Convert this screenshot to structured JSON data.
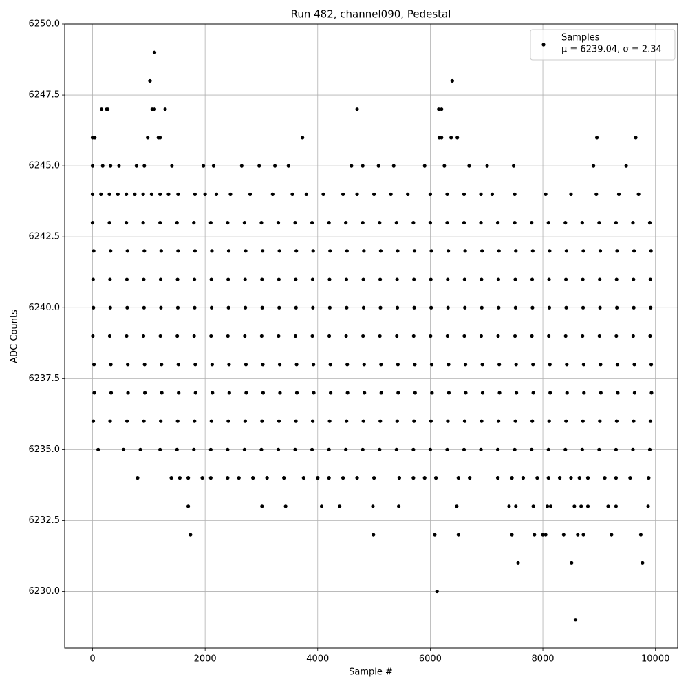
{
  "chart_data": {
    "type": "scatter",
    "title": "Run 482, channel090, Pedestal",
    "x_label": "Sample #",
    "y_label": "ADC Counts",
    "xlim": [
      -495,
      10395
    ],
    "xticks": [
      0,
      2000,
      4000,
      6000,
      8000,
      10000
    ],
    "ylim": [
      6228,
      6250
    ],
    "yticks": [
      {
        "value": 6230,
        "label": "6230.0"
      },
      {
        "value": 6232.5,
        "label": "6232.5"
      },
      {
        "value": 6235,
        "label": "6235.0"
      },
      {
        "value": 6237.5,
        "label": "6237.5"
      },
      {
        "value": 6240,
        "label": "6240.0"
      },
      {
        "value": 6242.5,
        "label": "6242.5"
      },
      {
        "value": 6245,
        "label": "6245.0"
      },
      {
        "value": 6247.5,
        "label": "6247.5"
      },
      {
        "value": 6250,
        "label": "6250.0"
      }
    ],
    "grid": true,
    "legend": "upper right",
    "legend_note": "μ = 6239.04, σ = 2.34",
    "series": [
      {
        "name": "Samples",
        "color": "#000000",
        "x": [
          1100,
          1020,
          6390,
          160,
          250,
          270,
          1060,
          1100,
          1290,
          4700,
          6150,
          6200,
          0,
          40,
          980,
          1170,
          1200,
          3730,
          6160,
          6200,
          6370,
          6480,
          8960,
          9650,
          8580,
          6120,
          7560,
          8510,
          9770,
          1740,
          4990,
          6080,
          6500,
          7450,
          7850,
          8000,
          8050,
          8370,
          8620,
          8720,
          9220,
          9740,
          1700,
          3010,
          3430,
          4070,
          4390,
          4980,
          5440,
          6470,
          7400,
          7520,
          7830,
          8080,
          8140,
          8560,
          8680,
          8800,
          9160,
          9300,
          9870,
          0,
          180,
          320,
          470,
          780,
          920,
          1410,
          1970,
          2150,
          2650,
          2960,
          3240,
          3480,
          4600,
          4800,
          5080,
          5350,
          5900,
          6250,
          6690,
          7010,
          7480,
          8900,
          9480,
          0,
          150,
          300,
          450,
          600,
          750,
          900,
          1050,
          1200,
          1350,
          1520,
          1820,
          2000,
          2200,
          2450,
          2800,
          3200,
          3550,
          3800,
          4100,
          4450,
          4700,
          5000,
          5300,
          5600,
          6000,
          6300,
          6600,
          6900,
          7100,
          7500,
          8050,
          8500,
          8950,
          9350,
          9700,
          0,
          300,
          600,
          900,
          1200,
          1500,
          1800,
          2100,
          2400,
          2700,
          3000,
          3300,
          3600,
          3900,
          4200,
          4500,
          4800,
          5100,
          5400,
          5700,
          6000,
          6300,
          6600,
          6900,
          7200,
          7500,
          7800,
          8100,
          8400,
          8700,
          9000,
          9300,
          9600,
          9900,
          20,
          320,
          620,
          920,
          1220,
          1520,
          1820,
          2120,
          2420,
          2720,
          3020,
          3320,
          3620,
          3920,
          4220,
          4520,
          4820,
          5120,
          5420,
          5720,
          6020,
          6320,
          6620,
          6920,
          7220,
          7520,
          7820,
          8120,
          8420,
          8720,
          9020,
          9320,
          9620,
          9920,
          10,
          310,
          610,
          910,
          1210,
          1510,
          1810,
          2110,
          2410,
          2710,
          3010,
          3310,
          3610,
          3910,
          4210,
          4510,
          4810,
          5110,
          5410,
          5710,
          6010,
          6310,
          6610,
          6910,
          7210,
          7510,
          7810,
          8110,
          8410,
          8710,
          9010,
          9310,
          9610,
          9910,
          15,
          315,
          615,
          915,
          1215,
          1515,
          1815,
          2115,
          2415,
          2715,
          3015,
          3315,
          3615,
          3915,
          4215,
          4515,
          4815,
          5115,
          5415,
          5715,
          6015,
          6315,
          6615,
          6915,
          7215,
          7515,
          7815,
          8115,
          8415,
          8715,
          9015,
          9315,
          9615,
          9915,
          5,
          305,
          605,
          905,
          1205,
          1505,
          1805,
          2105,
          2405,
          2705,
          3005,
          3305,
          3605,
          3905,
          4205,
          4505,
          4805,
          5105,
          5405,
          5705,
          6005,
          6305,
          6605,
          6905,
          7205,
          7505,
          7805,
          8105,
          8405,
          8705,
          9005,
          9305,
          9605,
          9905,
          25,
          325,
          625,
          925,
          1225,
          1525,
          1825,
          2125,
          2425,
          2725,
          3025,
          3325,
          3625,
          3925,
          4225,
          4525,
          4825,
          5125,
          5425,
          5725,
          6025,
          6325,
          6625,
          6925,
          7225,
          7525,
          7825,
          8125,
          8425,
          8725,
          9025,
          9325,
          9625,
          9925,
          30,
          330,
          630,
          930,
          1230,
          1530,
          1830,
          2130,
          2430,
          2730,
          3030,
          3330,
          3630,
          3930,
          4230,
          4530,
          4830,
          5130,
          5430,
          5730,
          6030,
          6330,
          6630,
          6930,
          7230,
          7530,
          7830,
          8130,
          8430,
          8730,
          9030,
          9330,
          9630,
          9930,
          12,
          312,
          612,
          912,
          1212,
          1512,
          1812,
          2112,
          2412,
          2712,
          3012,
          3312,
          3612,
          3912,
          4212,
          4512,
          4812,
          5112,
          5412,
          5712,
          6012,
          6312,
          6612,
          6912,
          7212,
          7512,
          7812,
          8112,
          8412,
          8712,
          9012,
          9312,
          9612,
          9912,
          100,
          550,
          850,
          1200,
          1500,
          1800,
          2100,
          2400,
          2700,
          3000,
          3300,
          3600,
          3900,
          4200,
          4500,
          4800,
          5100,
          5400,
          5700,
          6000,
          6300,
          6600,
          6900,
          7200,
          7500,
          7800,
          8100,
          8400,
          8700,
          9000,
          9300,
          9600,
          9900,
          800,
          1400,
          1550,
          1700,
          1950,
          2100,
          2400,
          2600,
          2850,
          3100,
          3400,
          3750,
          4000,
          4200,
          4450,
          4700,
          5000,
          5450,
          5700,
          5900,
          6100,
          6500,
          6700,
          7200,
          7450,
          7650,
          7900,
          8100,
          8300,
          8500,
          8650,
          8800,
          9100,
          9300,
          9550,
          9880
        ],
        "values": [
          6249,
          6248,
          6248,
          6247,
          6247,
          6247,
          6247,
          6247,
          6247,
          6247,
          6247,
          6247,
          6246,
          6246,
          6246,
          6246,
          6246,
          6246,
          6246,
          6246,
          6246,
          6246,
          6246,
          6246,
          6229,
          6230,
          6231,
          6231,
          6231,
          6232,
          6232,
          6232,
          6232,
          6232,
          6232,
          6232,
          6232,
          6232,
          6232,
          6232,
          6232,
          6232,
          6233,
          6233,
          6233,
          6233,
          6233,
          6233,
          6233,
          6233,
          6233,
          6233,
          6233,
          6233,
          6233,
          6233,
          6233,
          6233,
          6233,
          6233,
          6233,
          6245,
          6245,
          6245,
          6245,
          6245,
          6245,
          6245,
          6245,
          6245,
          6245,
          6245,
          6245,
          6245,
          6245,
          6245,
          6245,
          6245,
          6245,
          6245,
          6245,
          6245,
          6245,
          6245,
          6245,
          6244,
          6244,
          6244,
          6244,
          6244,
          6244,
          6244,
          6244,
          6244,
          6244,
          6244,
          6244,
          6244,
          6244,
          6244,
          6244,
          6244,
          6244,
          6244,
          6244,
          6244,
          6244,
          6244,
          6244,
          6244,
          6244,
          6244,
          6244,
          6244,
          6244,
          6244,
          6244,
          6244,
          6244,
          6244,
          6244,
          6243,
          6243,
          6243,
          6243,
          6243,
          6243,
          6243,
          6243,
          6243,
          6243,
          6243,
          6243,
          6243,
          6243,
          6243,
          6243,
          6243,
          6243,
          6243,
          6243,
          6243,
          6243,
          6243,
          6243,
          6243,
          6243,
          6243,
          6243,
          6243,
          6243,
          6243,
          6243,
          6243,
          6243,
          6242,
          6242,
          6242,
          6242,
          6242,
          6242,
          6242,
          6242,
          6242,
          6242,
          6242,
          6242,
          6242,
          6242,
          6242,
          6242,
          6242,
          6242,
          6242,
          6242,
          6242,
          6242,
          6242,
          6242,
          6242,
          6242,
          6242,
          6242,
          6242,
          6242,
          6242,
          6242,
          6242,
          6242,
          6241,
          6241,
          6241,
          6241,
          6241,
          6241,
          6241,
          6241,
          6241,
          6241,
          6241,
          6241,
          6241,
          6241,
          6241,
          6241,
          6241,
          6241,
          6241,
          6241,
          6241,
          6241,
          6241,
          6241,
          6241,
          6241,
          6241,
          6241,
          6241,
          6241,
          6241,
          6241,
          6241,
          6241,
          6240,
          6240,
          6240,
          6240,
          6240,
          6240,
          6240,
          6240,
          6240,
          6240,
          6240,
          6240,
          6240,
          6240,
          6240,
          6240,
          6240,
          6240,
          6240,
          6240,
          6240,
          6240,
          6240,
          6240,
          6240,
          6240,
          6240,
          6240,
          6240,
          6240,
          6240,
          6240,
          6240,
          6240,
          6239,
          6239,
          6239,
          6239,
          6239,
          6239,
          6239,
          6239,
          6239,
          6239,
          6239,
          6239,
          6239,
          6239,
          6239,
          6239,
          6239,
          6239,
          6239,
          6239,
          6239,
          6239,
          6239,
          6239,
          6239,
          6239,
          6239,
          6239,
          6239,
          6239,
          6239,
          6239,
          6239,
          6239,
          6238,
          6238,
          6238,
          6238,
          6238,
          6238,
          6238,
          6238,
          6238,
          6238,
          6238,
          6238,
          6238,
          6238,
          6238,
          6238,
          6238,
          6238,
          6238,
          6238,
          6238,
          6238,
          6238,
          6238,
          6238,
          6238,
          6238,
          6238,
          6238,
          6238,
          6238,
          6238,
          6238,
          6238,
          6237,
          6237,
          6237,
          6237,
          6237,
          6237,
          6237,
          6237,
          6237,
          6237,
          6237,
          6237,
          6237,
          6237,
          6237,
          6237,
          6237,
          6237,
          6237,
          6237,
          6237,
          6237,
          6237,
          6237,
          6237,
          6237,
          6237,
          6237,
          6237,
          6237,
          6237,
          6237,
          6237,
          6237,
          6236,
          6236,
          6236,
          6236,
          6236,
          6236,
          6236,
          6236,
          6236,
          6236,
          6236,
          6236,
          6236,
          6236,
          6236,
          6236,
          6236,
          6236,
          6236,
          6236,
          6236,
          6236,
          6236,
          6236,
          6236,
          6236,
          6236,
          6236,
          6236,
          6236,
          6236,
          6236,
          6236,
          6236,
          6235,
          6235,
          6235,
          6235,
          6235,
          6235,
          6235,
          6235,
          6235,
          6235,
          6235,
          6235,
          6235,
          6235,
          6235,
          6235,
          6235,
          6235,
          6235,
          6235,
          6235,
          6235,
          6235,
          6235,
          6235,
          6235,
          6235,
          6235,
          6235,
          6235,
          6235,
          6235,
          6235,
          6234,
          6234,
          6234,
          6234,
          6234,
          6234,
          6234,
          6234,
          6234,
          6234,
          6234,
          6234,
          6234,
          6234,
          6234,
          6234,
          6234,
          6234,
          6234,
          6234,
          6234,
          6234,
          6234,
          6234,
          6234,
          6234,
          6234,
          6234,
          6234,
          6234,
          6234,
          6234,
          6234,
          6234,
          6234,
          6234
        ]
      }
    ]
  }
}
